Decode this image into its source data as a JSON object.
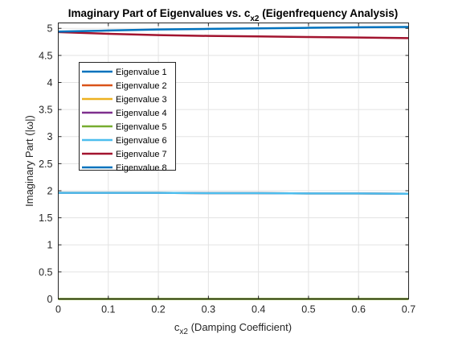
{
  "chart_data": {
    "type": "line",
    "title_main": "Imaginary Part of Eigenvalues vs. c",
    "title_sub": "x2",
    "title_tail": " (Eigenfrequency Analysis)",
    "xlabel_main": "c",
    "xlabel_sub": "x2",
    "xlabel_tail": " (Damping Coefficient)",
    "ylabel": "Imaginary Part (|ω|)",
    "xlim": [
      0,
      0.7
    ],
    "ylim": [
      0,
      5.1
    ],
    "xticks": [
      0,
      0.1,
      0.2,
      0.3,
      0.4,
      0.5,
      0.6,
      0.7
    ],
    "xtick_labels": [
      "0",
      "0.1",
      "0.2",
      "0.3",
      "0.4",
      "0.5",
      "0.6",
      "0.7"
    ],
    "yticks": [
      0,
      0.5,
      1,
      1.5,
      2,
      2.5,
      3,
      3.5,
      4,
      4.5,
      5
    ],
    "ytick_labels": [
      "0",
      "0.5",
      "1",
      "1.5",
      "2",
      "2.5",
      "3",
      "3.5",
      "4",
      "4.5",
      "5"
    ],
    "grid": true,
    "legend_position": "upper-left",
    "x": [
      0,
      0.1,
      0.2,
      0.3,
      0.4,
      0.5,
      0.6,
      0.7
    ],
    "series": [
      {
        "name": "Eigenvalue 1",
        "color": "#0072BD",
        "values": [
          0,
          0,
          0,
          0,
          0,
          0,
          0,
          0
        ]
      },
      {
        "name": "Eigenvalue 2",
        "color": "#D95319",
        "values": [
          0,
          0,
          0,
          0,
          0,
          0,
          0,
          0
        ]
      },
      {
        "name": "Eigenvalue 3",
        "color": "#EDB120",
        "values": [
          1.96,
          1.96,
          1.96,
          1.955,
          1.955,
          1.95,
          1.95,
          1.945
        ]
      },
      {
        "name": "Eigenvalue 4",
        "color": "#7E2F8E",
        "values": [
          1.96,
          1.96,
          1.96,
          1.955,
          1.955,
          1.95,
          1.95,
          1.945
        ]
      },
      {
        "name": "Eigenvalue 5",
        "color": "#77AC30",
        "values": [
          0,
          0,
          0,
          0,
          0,
          0,
          0,
          0
        ]
      },
      {
        "name": "Eigenvalue 6",
        "color": "#4DBEEE",
        "values": [
          1.96,
          1.96,
          1.96,
          1.955,
          1.955,
          1.95,
          1.95,
          1.945
        ]
      },
      {
        "name": "Eigenvalue 7",
        "color": "#A2142F",
        "values": [
          4.93,
          4.9,
          4.875,
          4.86,
          4.85,
          4.84,
          4.83,
          4.82
        ]
      },
      {
        "name": "Eigenvalue 8",
        "color": "#0072BD",
        "values": [
          4.94,
          4.96,
          4.98,
          4.99,
          5.0,
          5.01,
          5.02,
          5.025
        ]
      }
    ]
  }
}
